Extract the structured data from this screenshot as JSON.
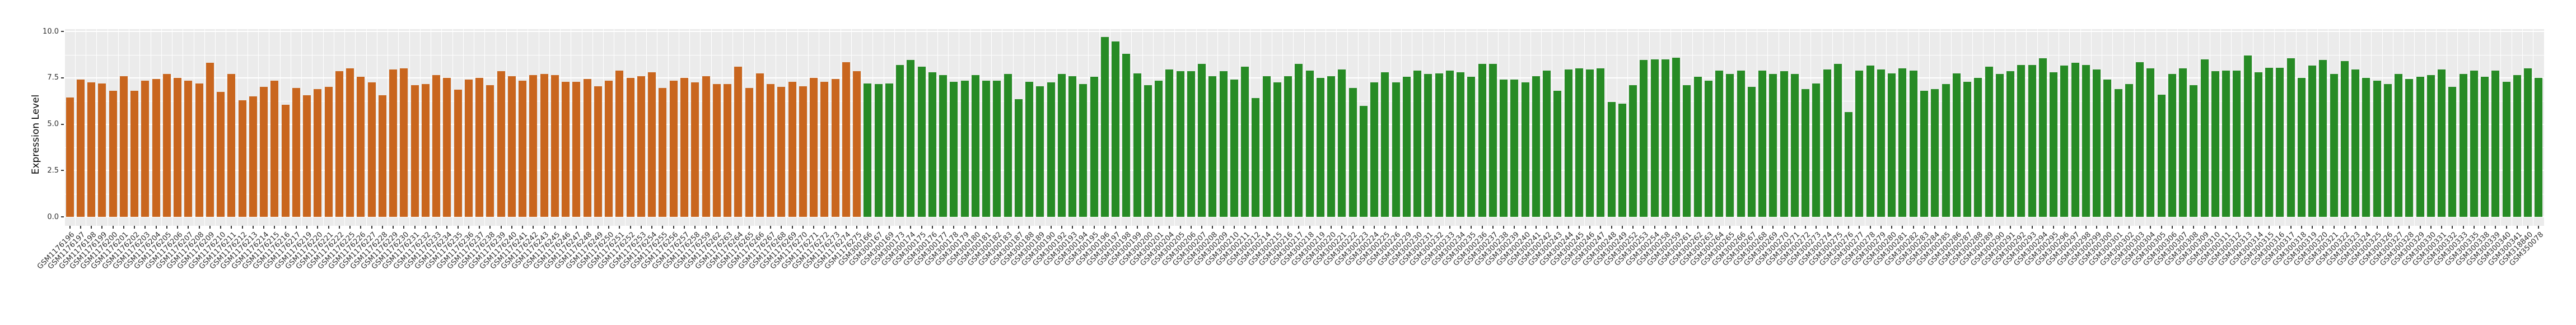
{
  "chart_data": {
    "type": "bar",
    "title": "",
    "xlabel": "",
    "ylabel": "Expression Level",
    "ylim": [
      0,
      10.6
    ],
    "y_major_tick_labels": [
      "0.0",
      "2.5",
      "5.0",
      "7.5",
      "10.0"
    ],
    "y_major_tick_values": [
      0,
      2.5,
      5,
      7.5,
      10
    ],
    "y_minor_tick_values": [
      1.25,
      3.75,
      6.25,
      8.75
    ],
    "grid": "on",
    "legend_position": "none",
    "panel_background": "#EBEBEB",
    "grid_color": "#FFFFFF",
    "axis_text_color": "#303030",
    "series": [
      {
        "name": "orange-group",
        "color": "#C9661E",
        "start_index": 0,
        "end_index": 73
      },
      {
        "name": "green-group",
        "color": "#278B25",
        "start_index": 74,
        "end_index": 229
      }
    ],
    "categories": [
      "GSM1176196",
      "GSM1176197",
      "GSM1176198",
      "GSM1176199",
      "GSM1176200",
      "GSM1176201",
      "GSM1176202",
      "GSM1176203",
      "GSM1176204",
      "GSM1176205",
      "GSM1176206",
      "GSM1176207",
      "GSM1176208",
      "GSM1176209",
      "GSM1176210",
      "GSM1176211",
      "GSM1176212",
      "GSM1176213",
      "GSM1176214",
      "GSM1176215",
      "GSM1176216",
      "GSM1176217",
      "GSM1176219",
      "GSM1176220",
      "GSM1176221",
      "GSM1176222",
      "GSM1176225",
      "GSM1176226",
      "GSM1176227",
      "GSM1176228",
      "GSM1176229",
      "GSM1176230",
      "GSM1176231",
      "GSM1176232",
      "GSM1176233",
      "GSM1176234",
      "GSM1176235",
      "GSM1176236",
      "GSM1176237",
      "GSM1176238",
      "GSM1176239",
      "GSM1176240",
      "GSM1176241",
      "GSM1176242",
      "GSM1176243",
      "GSM1176245",
      "GSM1176246",
      "GSM1176247",
      "GSM1176248",
      "GSM1176249",
      "GSM1176250",
      "GSM1176251",
      "GSM1176252",
      "GSM1176253",
      "GSM1176254",
      "GSM1176255",
      "GSM1176256",
      "GSM1176257",
      "GSM1176258",
      "GSM1176259",
      "GSM1176262",
      "GSM1176263",
      "GSM1176264",
      "GSM1176265",
      "GSM1176266",
      "GSM1176267",
      "GSM1176268",
      "GSM1176269",
      "GSM1176270",
      "GSM1176271",
      "GSM1176272",
      "GSM1176273",
      "GSM1176274",
      "GSM1176275",
      "GSM300166",
      "GSM300167",
      "GSM300169",
      "GSM300173",
      "GSM300174",
      "GSM300175",
      "GSM300176",
      "GSM300177",
      "GSM300178",
      "GSM300179",
      "GSM300180",
      "GSM300181",
      "GSM300182",
      "GSM300183",
      "GSM300187",
      "GSM300188",
      "GSM300189",
      "GSM300190",
      "GSM300192",
      "GSM300193",
      "GSM300194",
      "GSM300195",
      "GSM300196",
      "GSM300197",
      "GSM300198",
      "GSM300199",
      "GSM300200",
      "GSM300201",
      "GSM300204",
      "GSM300205",
      "GSM300206",
      "GSM300207",
      "GSM300208",
      "GSM300209",
      "GSM300210",
      "GSM300211",
      "GSM300212",
      "GSM300214",
      "GSM300215",
      "GSM300216",
      "GSM300217",
      "GSM300218",
      "GSM300219",
      "GSM300220",
      "GSM300221",
      "GSM300222",
      "GSM300223",
      "GSM300224",
      "GSM300225",
      "GSM300226",
      "GSM300229",
      "GSM300230",
      "GSM300231",
      "GSM300232",
      "GSM300233",
      "GSM300234",
      "GSM300235",
      "GSM300236",
      "GSM300237",
      "GSM300238",
      "GSM300239",
      "GSM300240",
      "GSM300241",
      "GSM300242",
      "GSM300243",
      "GSM300244",
      "GSM300245",
      "GSM300246",
      "GSM300247",
      "GSM300248",
      "GSM300249",
      "GSM300252",
      "GSM300253",
      "GSM300254",
      "GSM300258",
      "GSM300259",
      "GSM300261",
      "GSM300262",
      "GSM300263",
      "GSM300264",
      "GSM300265",
      "GSM300266",
      "GSM300267",
      "GSM300268",
      "GSM300269",
      "GSM300270",
      "GSM300271",
      "GSM300272",
      "GSM300273",
      "GSM300274",
      "GSM300275",
      "GSM300276",
      "GSM300277",
      "GSM300278",
      "GSM300279",
      "GSM300280",
      "GSM300281",
      "GSM300282",
      "GSM300283",
      "GSM300284",
      "GSM300285",
      "GSM300286",
      "GSM300287",
      "GSM300288",
      "GSM300289",
      "GSM300290",
      "GSM300291",
      "GSM300292",
      "GSM300293",
      "GSM300294",
      "GSM300295",
      "GSM300296",
      "GSM300297",
      "GSM300298",
      "GSM300299",
      "GSM300300",
      "GSM300301",
      "GSM300302",
      "GSM300303",
      "GSM300304",
      "GSM300305",
      "GSM300306",
      "GSM300307",
      "GSM300308",
      "GSM300309",
      "GSM300310",
      "GSM300311",
      "GSM300312",
      "GSM300313",
      "GSM300314",
      "GSM300315",
      "GSM300316",
      "GSM300317",
      "GSM300318",
      "GSM300319",
      "GSM300320",
      "GSM300321",
      "GSM300322",
      "GSM300323",
      "GSM300324",
      "GSM300325",
      "GSM300326",
      "GSM300327",
      "GSM300328",
      "GSM300329",
      "GSM300330",
      "GSM300331",
      "GSM300332",
      "GSM300333",
      "GSM300335",
      "GSM300338",
      "GSM300339",
      "GSM300340",
      "GSM300341",
      "GSM318840",
      "GSM350078"
    ],
    "values": [
      6.45,
      7.4,
      7.25,
      7.2,
      6.8,
      7.6,
      6.8,
      7.35,
      7.45,
      7.7,
      7.5,
      7.35,
      7.2,
      8.3,
      6.75,
      7.7,
      6.3,
      6.5,
      7.0,
      7.35,
      6.05,
      6.95,
      6.55,
      6.9,
      7.0,
      7.85,
      8.0,
      7.55,
      7.25,
      6.55,
      7.95,
      8.0,
      7.1,
      7.15,
      7.65,
      7.5,
      6.85,
      7.4,
      7.5,
      7.1,
      7.85,
      7.6,
      7.35,
      7.65,
      7.7,
      7.65,
      7.3,
      7.3,
      7.45,
      7.05,
      7.35,
      7.9,
      7.5,
      7.6,
      7.8,
      6.95,
      7.35,
      7.5,
      7.25,
      7.6,
      7.15,
      7.15,
      8.1,
      6.95,
      7.75,
      7.15,
      7.0,
      7.3,
      7.05,
      7.5,
      7.3,
      7.45,
      8.35,
      7.85,
      7.2,
      7.15,
      7.2,
      8.2,
      8.45,
      8.1,
      7.8,
      7.65,
      7.3,
      7.35,
      7.65,
      7.35,
      7.35,
      7.7,
      6.35,
      7.3,
      7.05,
      7.25,
      7.7,
      7.6,
      7.15,
      7.55,
      9.7,
      9.45,
      8.8,
      7.75,
      7.1,
      7.35,
      7.95,
      7.85,
      7.85,
      8.25,
      7.6,
      7.85,
      7.4,
      8.1,
      6.4,
      7.6,
      7.25,
      7.6,
      8.25,
      7.9,
      7.5,
      7.6,
      7.95,
      6.95,
      6.0,
      7.25,
      7.8,
      7.25,
      7.55,
      7.9,
      7.7,
      7.75,
      7.9,
      7.8,
      7.55,
      8.25,
      8.25,
      7.4,
      7.4,
      7.25,
      7.6,
      7.9,
      6.8,
      7.95,
      8.0,
      7.95,
      8.0,
      6.2,
      6.1,
      7.1,
      8.45,
      8.5,
      8.5,
      8.6,
      7.1,
      7.55,
      7.35,
      7.9,
      7.7,
      7.9,
      7.0,
      7.9,
      7.7,
      7.85,
      7.7,
      6.9,
      7.2,
      7.95,
      8.25,
      5.65,
      7.9,
      8.15,
      7.95,
      7.75,
      8.0,
      7.9,
      6.8,
      6.9,
      7.15,
      7.75,
      7.3,
      7.5,
      8.1,
      7.7,
      7.85,
      8.2,
      8.2,
      8.55,
      7.8,
      8.15,
      8.3,
      8.2,
      7.95,
      7.4,
      6.9,
      7.15,
      8.35,
      8.0,
      6.6,
      7.7,
      8.0,
      7.1,
      8.5,
      7.85,
      7.9,
      7.9,
      8.7,
      7.8,
      8.05,
      8.05,
      8.55,
      7.5,
      8.15,
      8.45,
      7.7,
      8.4,
      7.95,
      7.5,
      7.35,
      7.15,
      7.7,
      7.45,
      7.55,
      7.65,
      7.95,
      7.0,
      7.7,
      7.9,
      7.55,
      7.9,
      7.3,
      7.65,
      8.0,
      7.5
    ]
  }
}
